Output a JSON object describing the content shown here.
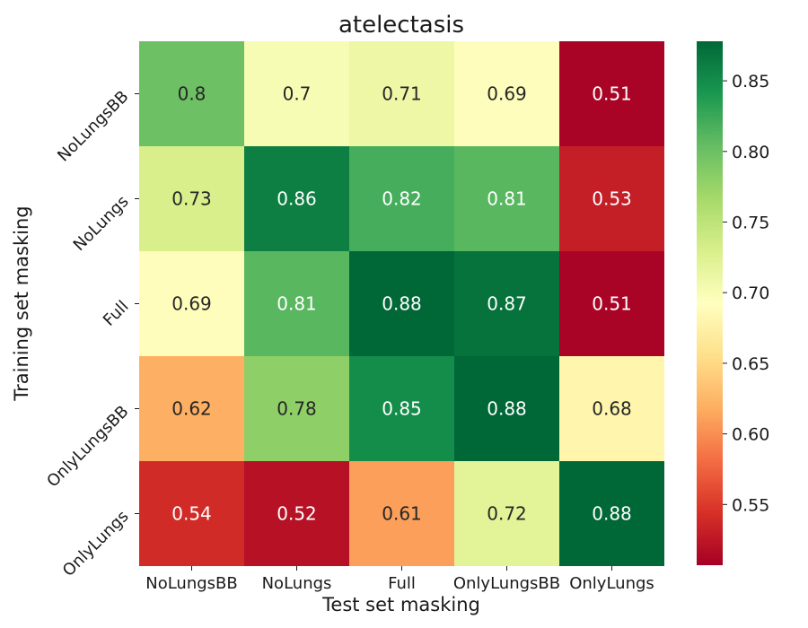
{
  "chart_data": {
    "type": "heatmap",
    "title": "atelectasis",
    "xlabel": "Test set masking",
    "ylabel": "Training set masking",
    "x_categories": [
      "NoLungsBB",
      "NoLungs",
      "Full",
      "OnlyLungsBB",
      "OnlyLungs"
    ],
    "y_categories": [
      "NoLungsBB",
      "NoLungs",
      "Full",
      "OnlyLungsBB",
      "OnlyLungs"
    ],
    "values": [
      [
        0.8,
        0.7,
        0.71,
        0.69,
        0.51
      ],
      [
        0.73,
        0.86,
        0.82,
        0.81,
        0.53
      ],
      [
        0.69,
        0.81,
        0.88,
        0.87,
        0.51
      ],
      [
        0.62,
        0.78,
        0.85,
        0.88,
        0.68
      ],
      [
        0.54,
        0.52,
        0.61,
        0.72,
        0.88
      ]
    ],
    "cell_labels": [
      [
        "0.8",
        "0.7",
        "0.71",
        "0.69",
        "0.51"
      ],
      [
        "0.73",
        "0.86",
        "0.82",
        "0.81",
        "0.53"
      ],
      [
        "0.69",
        "0.81",
        "0.88",
        "0.87",
        "0.51"
      ],
      [
        "0.62",
        "0.78",
        "0.85",
        "0.88",
        "0.68"
      ],
      [
        "0.54",
        "0.52",
        "0.61",
        "0.72",
        "0.88"
      ]
    ],
    "colormap": "RdYlGn",
    "colormap_stops": [
      "#a50026",
      "#d73027",
      "#f46d43",
      "#fdae61",
      "#fee08b",
      "#ffffbf",
      "#d9ef8b",
      "#a6d96a",
      "#66bd63",
      "#1a9850",
      "#006837"
    ],
    "color_range": [
      0.507,
      0.878
    ],
    "colorbar_ticks": [
      "0.55",
      "0.60",
      "0.65",
      "0.70",
      "0.75",
      "0.80",
      "0.85"
    ],
    "annotation_colors": {
      "dark": "#262626",
      "light": "#ffffff"
    }
  }
}
